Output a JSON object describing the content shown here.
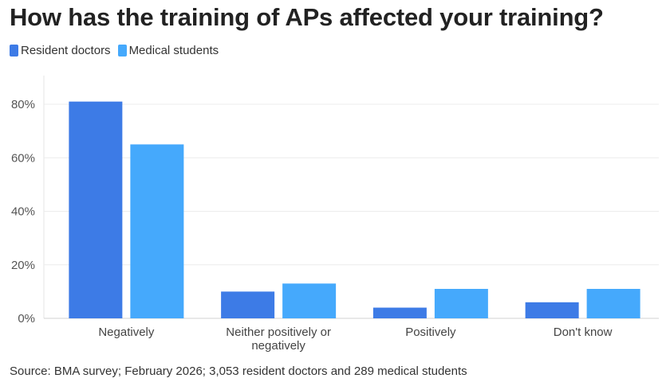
{
  "chart_data": {
    "type": "bar",
    "title": "How has the training of APs affected your training?",
    "categories": [
      "Negatively",
      "Neither positively or negatively",
      "Positively",
      "Don't know"
    ],
    "category_lines": [
      [
        "Negatively"
      ],
      [
        "Neither positively or",
        "negatively"
      ],
      [
        "Positively"
      ],
      [
        "Don't know"
      ]
    ],
    "series": [
      {
        "name": "Resident doctors",
        "color": "#3d7be6",
        "values": [
          81,
          10,
          4,
          6
        ]
      },
      {
        "name": "Medical students",
        "color": "#45a9fc",
        "values": [
          65,
          13,
          11,
          11
        ]
      }
    ],
    "ylim": [
      0,
      80
    ],
    "yticks": [
      0,
      20,
      40,
      60,
      80
    ],
    "ytick_labels": [
      "0%",
      "20%",
      "40%",
      "60%",
      "80%"
    ],
    "grid": true,
    "legend_position": "top-left",
    "xlabel": "",
    "ylabel": ""
  },
  "source": "Source: BMA survey; February 2026; 3,053 resident doctors and 289 medical students"
}
